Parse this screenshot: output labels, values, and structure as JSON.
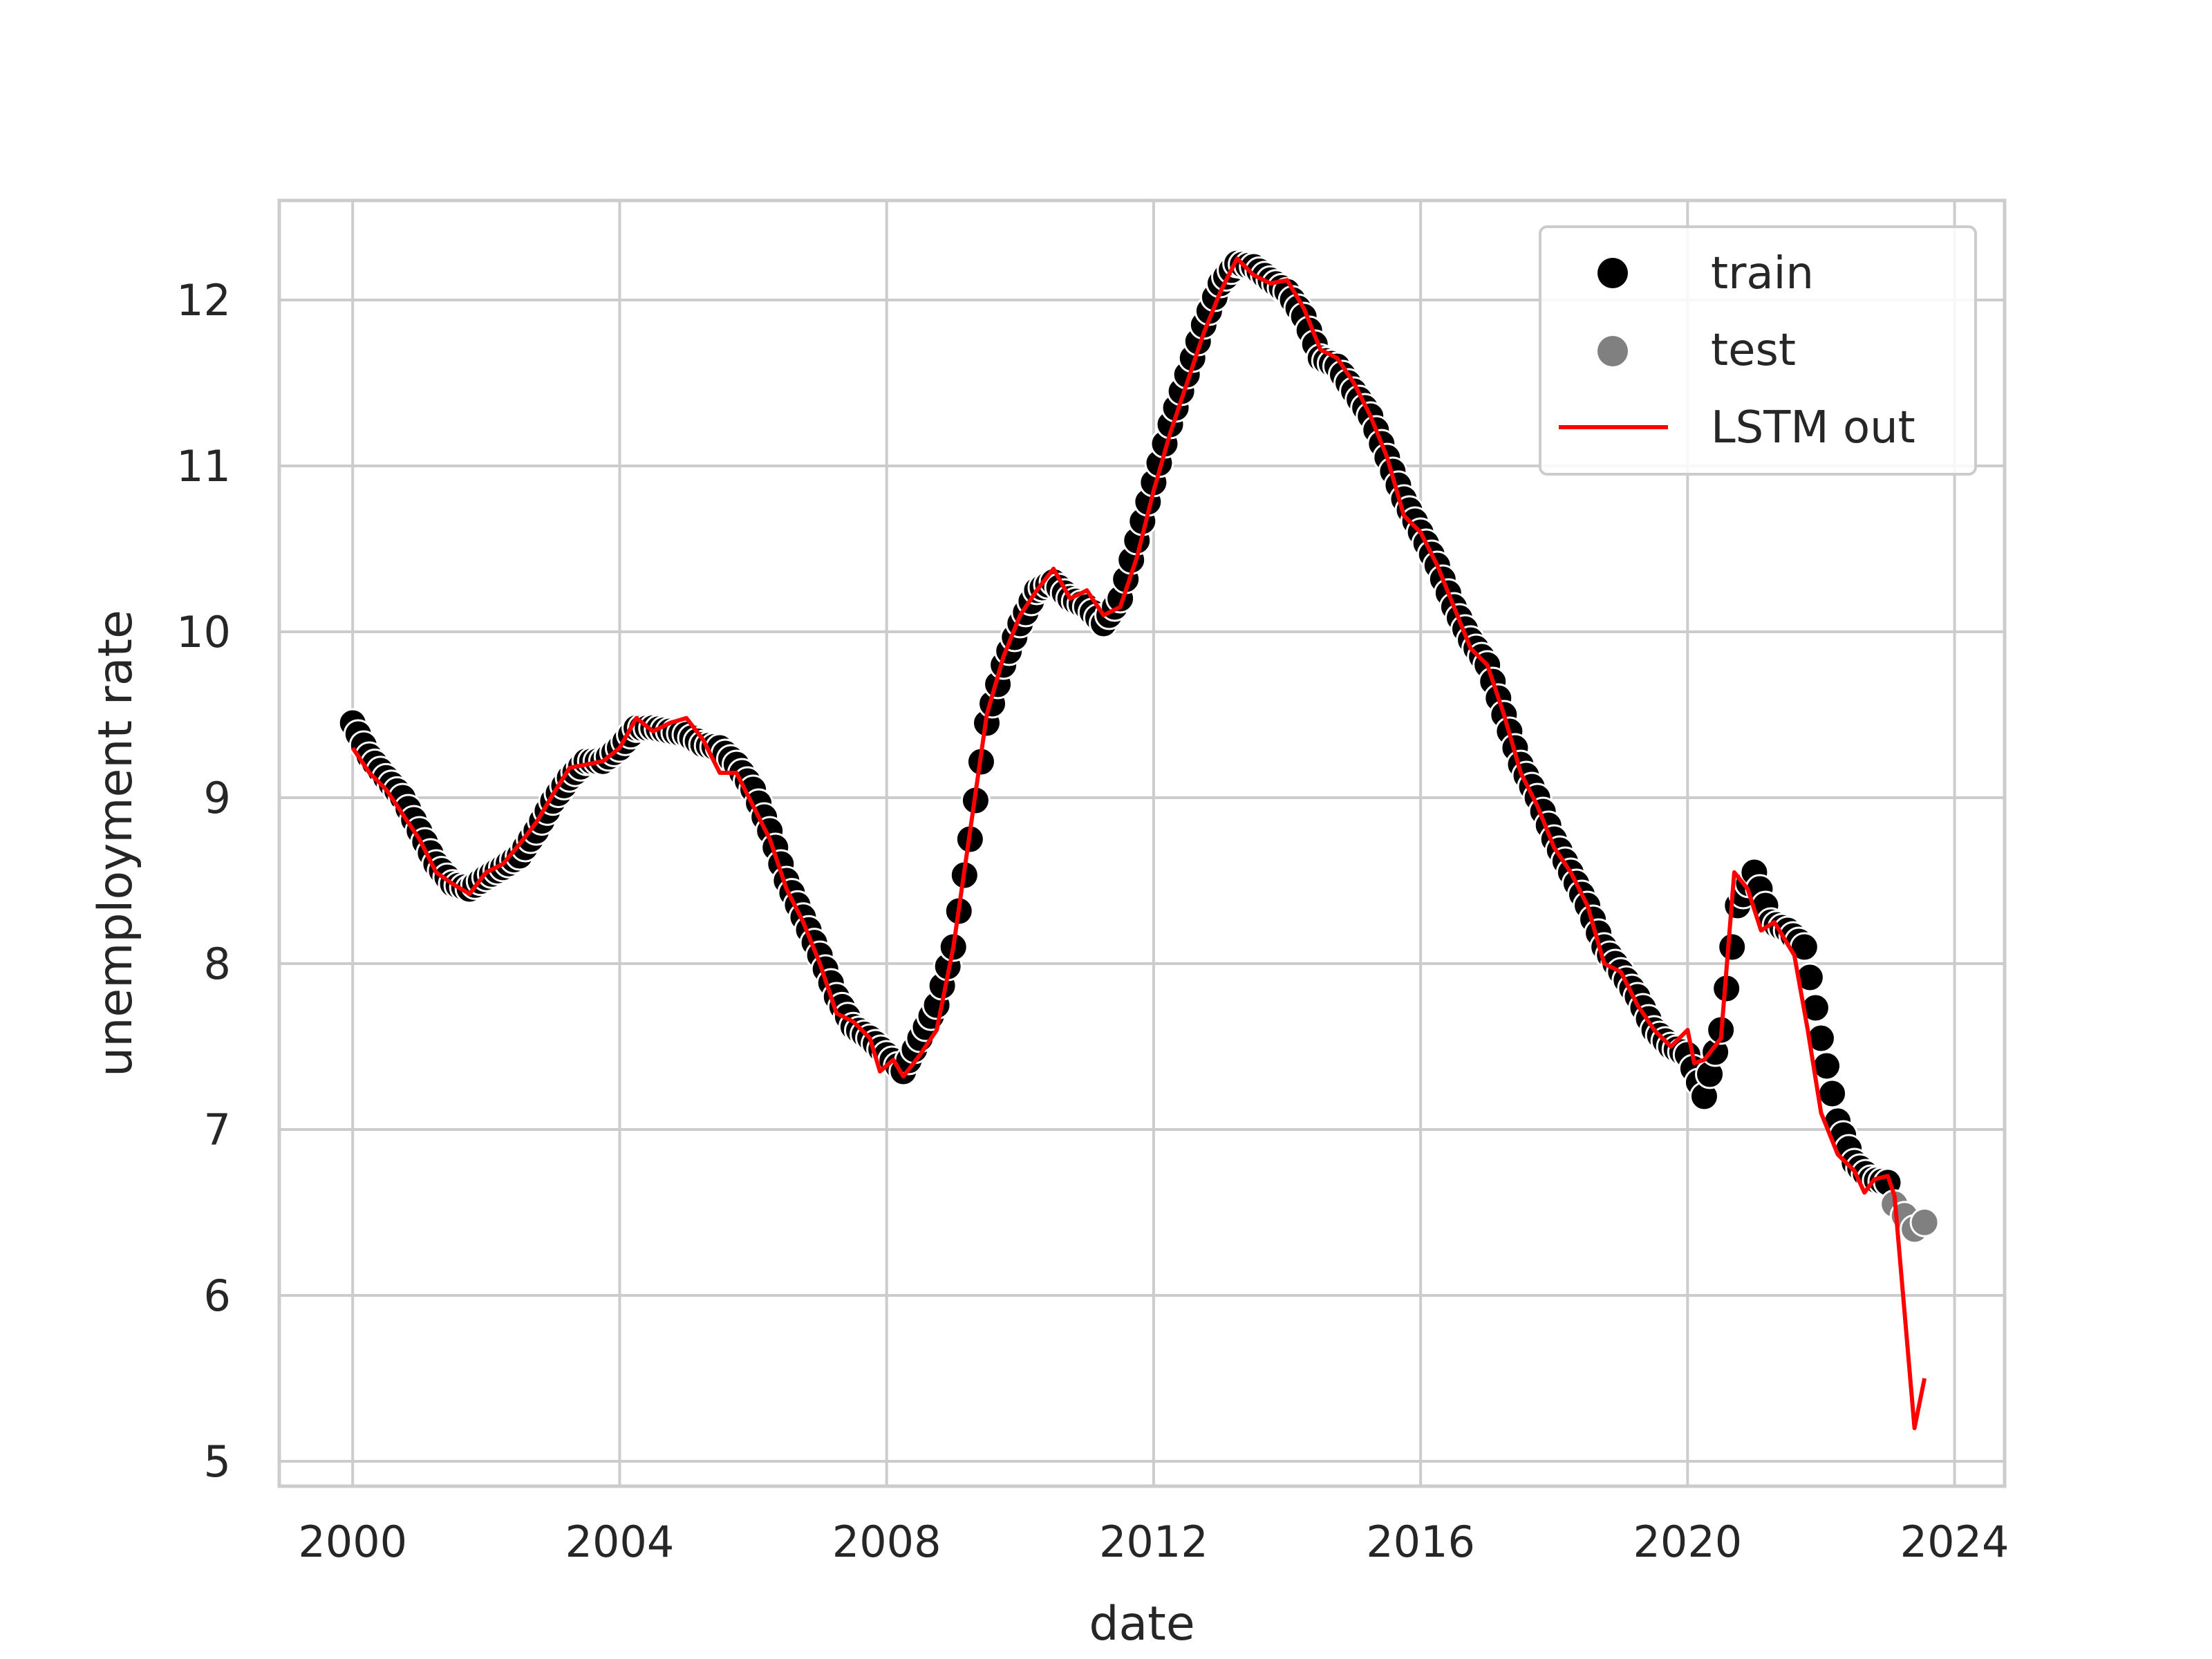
{
  "chart_data": {
    "type": "scatter",
    "title": "",
    "xlabel": "date",
    "ylabel": "unemployment rate",
    "x_ticks": [
      "2000",
      "2004",
      "2008",
      "2012",
      "2016",
      "2020",
      "2024"
    ],
    "y_ticks": [
      "5",
      "6",
      "7",
      "8",
      "9",
      "10",
      "11",
      "12"
    ],
    "xlim": [
      1998.9,
      2024.75
    ],
    "ylim": [
      4.85,
      12.6
    ],
    "grid": true,
    "legend_position": "top-right",
    "colors": {
      "train": "#000000",
      "test": "#808080",
      "lstm": "#ff0000",
      "grid": "#cccccc"
    },
    "series": [
      {
        "name": "train",
        "kind": "scatter",
        "points": [
          [
            2000.0,
            9.45
          ],
          [
            2000.25,
            9.25
          ],
          [
            2000.5,
            9.12
          ],
          [
            2000.75,
            9.0
          ],
          [
            2001.0,
            8.8
          ],
          [
            2001.25,
            8.6
          ],
          [
            2001.5,
            8.48
          ],
          [
            2001.75,
            8.45
          ],
          [
            2002.0,
            8.52
          ],
          [
            2002.25,
            8.58
          ],
          [
            2002.5,
            8.65
          ],
          [
            2002.75,
            8.8
          ],
          [
            2003.0,
            8.98
          ],
          [
            2003.25,
            9.12
          ],
          [
            2003.5,
            9.22
          ],
          [
            2003.75,
            9.22
          ],
          [
            2004.0,
            9.3
          ],
          [
            2004.25,
            9.42
          ],
          [
            2004.5,
            9.42
          ],
          [
            2004.75,
            9.4
          ],
          [
            2005.0,
            9.38
          ],
          [
            2005.25,
            9.32
          ],
          [
            2005.5,
            9.3
          ],
          [
            2005.75,
            9.2
          ],
          [
            2006.0,
            9.05
          ],
          [
            2006.25,
            8.8
          ],
          [
            2006.5,
            8.5
          ],
          [
            2006.75,
            8.28
          ],
          [
            2007.0,
            8.05
          ],
          [
            2007.25,
            7.8
          ],
          [
            2007.5,
            7.62
          ],
          [
            2007.75,
            7.55
          ],
          [
            2008.0,
            7.45
          ],
          [
            2008.25,
            7.35
          ],
          [
            2008.5,
            7.55
          ],
          [
            2008.75,
            7.75
          ],
          [
            2009.0,
            8.1
          ],
          [
            2009.25,
            8.75
          ],
          [
            2009.5,
            9.45
          ],
          [
            2009.75,
            9.8
          ],
          [
            2010.0,
            10.05
          ],
          [
            2010.25,
            10.25
          ],
          [
            2010.5,
            10.3
          ],
          [
            2010.75,
            10.2
          ],
          [
            2011.0,
            10.15
          ],
          [
            2011.25,
            10.05
          ],
          [
            2011.5,
            10.2
          ],
          [
            2011.75,
            10.55
          ],
          [
            2012.0,
            10.9
          ],
          [
            2012.25,
            11.25
          ],
          [
            2012.5,
            11.55
          ],
          [
            2012.75,
            11.85
          ],
          [
            2013.0,
            12.1
          ],
          [
            2013.25,
            12.22
          ],
          [
            2013.5,
            12.2
          ],
          [
            2013.75,
            12.12
          ],
          [
            2014.0,
            12.05
          ],
          [
            2014.25,
            11.9
          ],
          [
            2014.5,
            11.65
          ],
          [
            2014.75,
            11.6
          ],
          [
            2015.0,
            11.45
          ],
          [
            2015.25,
            11.3
          ],
          [
            2015.5,
            11.05
          ],
          [
            2015.75,
            10.8
          ],
          [
            2016.0,
            10.6
          ],
          [
            2016.25,
            10.4
          ],
          [
            2016.5,
            10.15
          ],
          [
            2016.75,
            9.95
          ],
          [
            2017.0,
            9.8
          ],
          [
            2017.25,
            9.5
          ],
          [
            2017.5,
            9.2
          ],
          [
            2017.75,
            9.0
          ],
          [
            2018.0,
            8.75
          ],
          [
            2018.25,
            8.55
          ],
          [
            2018.5,
            8.35
          ],
          [
            2018.75,
            8.1
          ],
          [
            2019.0,
            7.95
          ],
          [
            2019.25,
            7.8
          ],
          [
            2019.5,
            7.6
          ],
          [
            2019.75,
            7.5
          ],
          [
            2020.0,
            7.45
          ],
          [
            2020.25,
            7.2
          ],
          [
            2020.5,
            7.6
          ],
          [
            2020.75,
            8.35
          ],
          [
            2021.0,
            8.55
          ],
          [
            2021.25,
            8.25
          ],
          [
            2021.5,
            8.2
          ],
          [
            2021.75,
            8.1
          ],
          [
            2022.0,
            7.55
          ],
          [
            2022.25,
            7.05
          ],
          [
            2022.5,
            6.8
          ],
          [
            2022.75,
            6.7
          ],
          [
            2023.0,
            6.68
          ]
        ]
      },
      {
        "name": "test",
        "kind": "scatter",
        "points": [
          [
            2023.1,
            6.55
          ],
          [
            2023.25,
            6.48
          ],
          [
            2023.4,
            6.4
          ],
          [
            2023.55,
            6.44
          ]
        ]
      },
      {
        "name": "LSTM out",
        "kind": "line",
        "points": [
          [
            2000.0,
            9.3
          ],
          [
            2000.25,
            9.15
          ],
          [
            2000.5,
            9.05
          ],
          [
            2000.75,
            8.9
          ],
          [
            2001.0,
            8.75
          ],
          [
            2001.25,
            8.55
          ],
          [
            2001.5,
            8.48
          ],
          [
            2001.75,
            8.42
          ],
          [
            2002.0,
            8.55
          ],
          [
            2002.25,
            8.6
          ],
          [
            2002.5,
            8.72
          ],
          [
            2002.75,
            8.85
          ],
          [
            2003.0,
            9.02
          ],
          [
            2003.25,
            9.18
          ],
          [
            2003.5,
            9.2
          ],
          [
            2003.75,
            9.22
          ],
          [
            2004.0,
            9.3
          ],
          [
            2004.25,
            9.48
          ],
          [
            2004.5,
            9.4
          ],
          [
            2004.75,
            9.45
          ],
          [
            2005.0,
            9.48
          ],
          [
            2005.25,
            9.35
          ],
          [
            2005.5,
            9.15
          ],
          [
            2005.75,
            9.15
          ],
          [
            2006.0,
            8.95
          ],
          [
            2006.25,
            8.75
          ],
          [
            2006.5,
            8.45
          ],
          [
            2006.75,
            8.25
          ],
          [
            2007.0,
            8.0
          ],
          [
            2007.25,
            7.7
          ],
          [
            2007.5,
            7.65
          ],
          [
            2007.75,
            7.55
          ],
          [
            2007.9,
            7.35
          ],
          [
            2008.1,
            7.42
          ],
          [
            2008.25,
            7.32
          ],
          [
            2008.5,
            7.45
          ],
          [
            2008.75,
            7.6
          ],
          [
            2009.0,
            8.1
          ],
          [
            2009.25,
            8.8
          ],
          [
            2009.5,
            9.5
          ],
          [
            2009.75,
            9.85
          ],
          [
            2010.0,
            10.1
          ],
          [
            2010.25,
            10.25
          ],
          [
            2010.5,
            10.38
          ],
          [
            2010.75,
            10.2
          ],
          [
            2011.0,
            10.25
          ],
          [
            2011.25,
            10.1
          ],
          [
            2011.5,
            10.15
          ],
          [
            2011.75,
            10.45
          ],
          [
            2012.0,
            10.85
          ],
          [
            2012.25,
            11.2
          ],
          [
            2012.5,
            11.5
          ],
          [
            2012.75,
            11.8
          ],
          [
            2013.0,
            12.05
          ],
          [
            2013.25,
            12.25
          ],
          [
            2013.5,
            12.15
          ],
          [
            2013.75,
            12.1
          ],
          [
            2014.0,
            12.12
          ],
          [
            2014.25,
            11.95
          ],
          [
            2014.5,
            11.7
          ],
          [
            2014.75,
            11.65
          ],
          [
            2015.0,
            11.5
          ],
          [
            2015.25,
            11.3
          ],
          [
            2015.5,
            11.05
          ],
          [
            2015.75,
            10.7
          ],
          [
            2016.0,
            10.6
          ],
          [
            2016.25,
            10.4
          ],
          [
            2016.5,
            10.15
          ],
          [
            2016.75,
            9.9
          ],
          [
            2017.0,
            9.8
          ],
          [
            2017.25,
            9.5
          ],
          [
            2017.5,
            9.15
          ],
          [
            2017.75,
            8.95
          ],
          [
            2018.0,
            8.7
          ],
          [
            2018.25,
            8.55
          ],
          [
            2018.5,
            8.35
          ],
          [
            2018.75,
            8.0
          ],
          [
            2019.0,
            7.95
          ],
          [
            2019.25,
            7.75
          ],
          [
            2019.5,
            7.6
          ],
          [
            2019.75,
            7.5
          ],
          [
            2020.0,
            7.6
          ],
          [
            2020.1,
            7.4
          ],
          [
            2020.25,
            7.42
          ],
          [
            2020.5,
            7.55
          ],
          [
            2020.7,
            8.55
          ],
          [
            2020.9,
            8.45
          ],
          [
            2021.1,
            8.2
          ],
          [
            2021.3,
            8.25
          ],
          [
            2021.6,
            8.05
          ],
          [
            2021.8,
            7.6
          ],
          [
            2022.0,
            7.1
          ],
          [
            2022.25,
            6.85
          ],
          [
            2022.5,
            6.75
          ],
          [
            2022.65,
            6.62
          ],
          [
            2022.8,
            6.7
          ],
          [
            2023.0,
            6.72
          ],
          [
            2023.1,
            6.6
          ],
          [
            2023.25,
            5.9
          ],
          [
            2023.4,
            5.2
          ],
          [
            2023.55,
            5.5
          ]
        ]
      }
    ]
  }
}
